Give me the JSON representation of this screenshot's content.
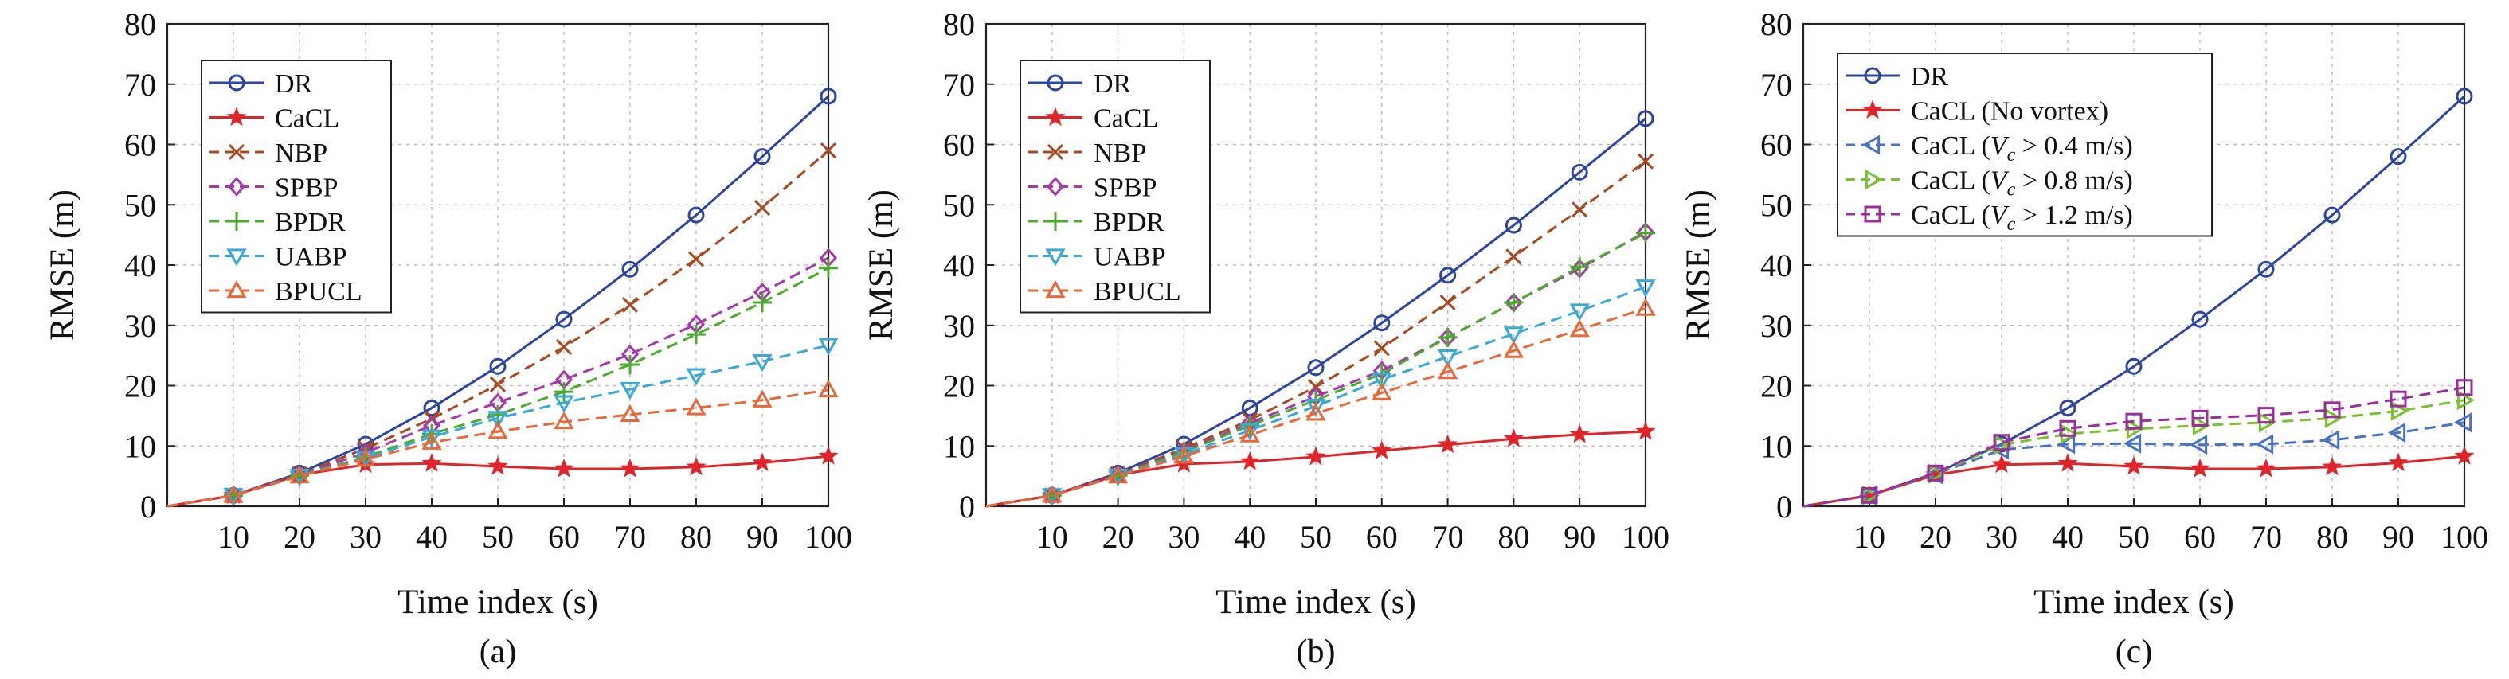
{
  "colors": {
    "DR": "#2b45a0",
    "CaCL": "#e0252a",
    "NBP": "#a8491f",
    "SPBP": "#a638ab",
    "BPDR": "#4bab2e",
    "UABP": "#3aa9d8",
    "BPUCL": "#e8683a",
    "CaCL_v04": "#4a72c4",
    "CaCL_v08": "#7ac12f",
    "CaCL_v12": "#9a2f9c"
  },
  "chart_data": [
    {
      "type": "line",
      "panel_label": "(a)",
      "xlabel": "Time index (s)",
      "ylabel": "RMSE (m)",
      "x": [
        0,
        10,
        20,
        30,
        40,
        50,
        60,
        70,
        80,
        90,
        100
      ],
      "x_tick_labels": [
        "10",
        "20",
        "30",
        "40",
        "50",
        "60",
        "70",
        "80",
        "90",
        "100"
      ],
      "y_tick_labels": [
        "0",
        "10",
        "20",
        "30",
        "40",
        "50",
        "60",
        "70",
        "80"
      ],
      "xlim": [
        0,
        100
      ],
      "ylim": [
        0,
        80
      ],
      "grid": true,
      "legend_position": "top-left",
      "series": [
        {
          "name": "DR",
          "color_key": "DR",
          "marker": "circle",
          "dash": "solid",
          "values": [
            0,
            1.8,
            5.5,
            10.3,
            16.3,
            23.2,
            31.0,
            39.3,
            48.3,
            58.0,
            68.0
          ]
        },
        {
          "name": "CaCL",
          "color_key": "CaCL",
          "marker": "star",
          "dash": "solid",
          "values": [
            0,
            1.8,
            5.2,
            6.9,
            7.1,
            6.6,
            6.2,
            6.2,
            6.5,
            7.2,
            8.3
          ]
        },
        {
          "name": "NBP",
          "color_key": "NBP",
          "marker": "x",
          "dash": "dashed",
          "values": [
            0,
            1.8,
            5.3,
            9.6,
            14.5,
            20.2,
            26.4,
            33.4,
            41.0,
            49.5,
            59.0
          ]
        },
        {
          "name": "SPBP",
          "color_key": "SPBP",
          "marker": "diamond",
          "dash": "dashed",
          "values": [
            0,
            1.8,
            5.2,
            8.9,
            13.4,
            17.2,
            21.0,
            25.2,
            30.2,
            35.5,
            41.2
          ]
        },
        {
          "name": "BPDR",
          "color_key": "BPDR",
          "marker": "plus",
          "dash": "dashed",
          "values": [
            0,
            1.8,
            5.1,
            8.2,
            12.0,
            15.2,
            19.0,
            23.5,
            28.5,
            33.8,
            39.5
          ]
        },
        {
          "name": "UABP",
          "color_key": "UABP",
          "marker": "triangle-down",
          "dash": "dashed",
          "values": [
            0,
            1.8,
            5.0,
            8.0,
            11.5,
            14.6,
            17.2,
            19.4,
            21.7,
            24.0,
            26.7
          ]
        },
        {
          "name": "BPUCL",
          "color_key": "BPUCL",
          "marker": "triangle-up",
          "dash": "dashed",
          "values": [
            0,
            1.8,
            5.0,
            7.8,
            10.6,
            12.4,
            14.0,
            15.2,
            16.3,
            17.6,
            19.3
          ]
        }
      ]
    },
    {
      "type": "line",
      "panel_label": "(b)",
      "xlabel": "Time index (s)",
      "ylabel": "RMSE (m)",
      "x": [
        0,
        10,
        20,
        30,
        40,
        50,
        60,
        70,
        80,
        90,
        100
      ],
      "x_tick_labels": [
        "10",
        "20",
        "30",
        "40",
        "50",
        "60",
        "70",
        "80",
        "90",
        "100"
      ],
      "y_tick_labels": [
        "0",
        "10",
        "20",
        "30",
        "40",
        "50",
        "60",
        "70",
        "80"
      ],
      "xlim": [
        0,
        100
      ],
      "ylim": [
        0,
        80
      ],
      "grid": true,
      "legend_position": "top-left",
      "series": [
        {
          "name": "DR",
          "color_key": "DR",
          "marker": "circle",
          "dash": "solid",
          "values": [
            0,
            1.8,
            5.5,
            10.3,
            16.3,
            23.0,
            30.4,
            38.3,
            46.6,
            55.4,
            64.3
          ]
        },
        {
          "name": "CaCL",
          "color_key": "CaCL",
          "marker": "star",
          "dash": "solid",
          "values": [
            0,
            1.8,
            5.2,
            7.0,
            7.4,
            8.2,
            9.2,
            10.2,
            11.2,
            11.9,
            12.4
          ]
        },
        {
          "name": "NBP",
          "color_key": "NBP",
          "marker": "x",
          "dash": "dashed",
          "values": [
            0,
            1.8,
            5.3,
            9.6,
            14.3,
            19.8,
            26.2,
            33.8,
            41.4,
            49.2,
            57.2
          ]
        },
        {
          "name": "SPBP",
          "color_key": "SPBP",
          "marker": "diamond",
          "dash": "dashed",
          "values": [
            0,
            1.8,
            5.2,
            9.2,
            13.8,
            18.2,
            22.5,
            28.0,
            33.8,
            39.4,
            45.5
          ]
        },
        {
          "name": "BPDR",
          "color_key": "BPDR",
          "marker": "plus",
          "dash": "dashed",
          "values": [
            0,
            1.8,
            5.1,
            9.0,
            13.4,
            17.6,
            22.0,
            28.0,
            33.8,
            39.7,
            45.3
          ]
        },
        {
          "name": "UABP",
          "color_key": "UABP",
          "marker": "triangle-down",
          "dash": "dashed",
          "values": [
            0,
            1.8,
            5.0,
            8.6,
            12.6,
            16.6,
            21.0,
            24.8,
            28.6,
            32.4,
            36.4
          ]
        },
        {
          "name": "BPUCL",
          "color_key": "BPUCL",
          "marker": "triangle-up",
          "dash": "dashed",
          "values": [
            0,
            1.8,
            5.0,
            8.3,
            11.8,
            15.4,
            18.8,
            22.3,
            25.8,
            29.3,
            32.8
          ]
        }
      ]
    },
    {
      "type": "line",
      "panel_label": "(c)",
      "xlabel": "Time index (s)",
      "ylabel": "RMSE (m)",
      "x": [
        0,
        10,
        20,
        30,
        40,
        50,
        60,
        70,
        80,
        90,
        100
      ],
      "x_tick_labels": [
        "10",
        "20",
        "30",
        "40",
        "50",
        "60",
        "70",
        "80",
        "90",
        "100"
      ],
      "y_tick_labels": [
        "0",
        "10",
        "20",
        "30",
        "40",
        "50",
        "60",
        "70",
        "80"
      ],
      "xlim": [
        0,
        100
      ],
      "ylim": [
        0,
        80
      ],
      "grid": true,
      "legend_position": "top-left",
      "series": [
        {
          "name": "DR",
          "color_key": "DR",
          "marker": "circle",
          "dash": "solid",
          "values": [
            0,
            1.8,
            5.5,
            10.3,
            16.3,
            23.2,
            31.0,
            39.3,
            48.3,
            58.0,
            68.0
          ]
        },
        {
          "name": "CaCL (No vortex)",
          "color_key": "CaCL",
          "marker": "star",
          "dash": "solid",
          "values": [
            0,
            1.8,
            5.2,
            6.9,
            7.1,
            6.6,
            6.2,
            6.2,
            6.5,
            7.2,
            8.3
          ]
        },
        {
          "name": "CaCL (V_c > 0.4 m/s)",
          "legend_parts": [
            "CaCL (",
            "V",
            "c",
            " > 0.4 m/s)"
          ],
          "color_key": "CaCL_v04",
          "marker": "triangle-left",
          "dash": "dashed",
          "values": [
            0,
            1.8,
            5.3,
            9.4,
            10.3,
            10.4,
            10.2,
            10.3,
            11.0,
            12.2,
            13.9
          ]
        },
        {
          "name": "CaCL (V_c > 0.8 m/s)",
          "legend_parts": [
            "CaCL (",
            "V",
            "c",
            " > 0.8 m/s)"
          ],
          "color_key": "CaCL_v08",
          "marker": "triangle-right",
          "dash": "dashed",
          "values": [
            0,
            1.8,
            5.4,
            10.2,
            12.0,
            12.8,
            13.4,
            13.9,
            14.6,
            15.8,
            17.6
          ]
        },
        {
          "name": "CaCL (V_c > 1.2 m/s)",
          "legend_parts": [
            "CaCL (",
            "V",
            "c",
            " > 1.2 m/s)"
          ],
          "color_key": "CaCL_v12",
          "marker": "square",
          "dash": "dashed",
          "values": [
            0,
            1.8,
            5.5,
            10.6,
            12.9,
            14.1,
            14.6,
            15.1,
            16.0,
            17.8,
            19.7
          ]
        }
      ]
    }
  ]
}
